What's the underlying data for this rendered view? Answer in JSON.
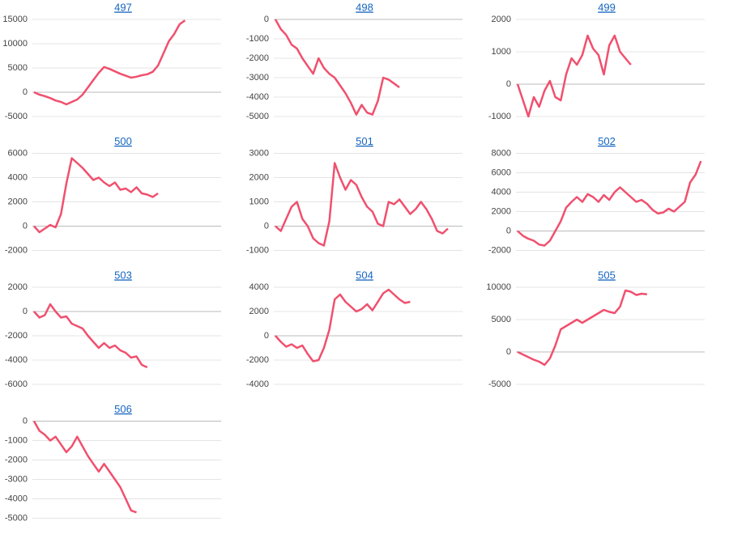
{
  "chart_data": [
    {
      "type": "line",
      "title": "497",
      "color": "#f0506e",
      "ylim": [
        -5000,
        15000
      ],
      "yticks": [
        -5000,
        0,
        5000,
        10000,
        15000
      ],
      "grid": true,
      "values": [
        0,
        -500,
        -800,
        -1200,
        -1700,
        -2000,
        -2500,
        -2000,
        -1500,
        -500,
        1000,
        2500,
        4000,
        5200,
        4800,
        4300,
        3800,
        3400,
        3000,
        3200,
        3500,
        3700,
        4200,
        5500,
        8000,
        10500,
        12000,
        14000,
        14800
      ]
    },
    {
      "type": "line",
      "title": "498",
      "color": "#f0506e",
      "ylim": [
        -5000,
        0
      ],
      "yticks": [
        -5000,
        -4000,
        -3000,
        -2000,
        -1000,
        0
      ],
      "grid": true,
      "values": [
        0,
        -500,
        -800,
        -1300,
        -1500,
        -2000,
        -2400,
        -2800,
        -2000,
        -2500,
        -2800,
        -3000,
        -3400,
        -3800,
        -4300,
        -4900,
        -4400,
        -4800,
        -4900,
        -4200,
        -3000,
        -3100,
        -3300,
        -3500
      ]
    },
    {
      "type": "line",
      "title": "499",
      "color": "#f0506e",
      "ylim": [
        -1000,
        2000
      ],
      "yticks": [
        -1000,
        0,
        1000,
        2000
      ],
      "grid": true,
      "values": [
        0,
        -500,
        -1000,
        -400,
        -700,
        -200,
        100,
        -400,
        -500,
        300,
        800,
        600,
        900,
        1500,
        1100,
        900,
        300,
        1200,
        1500,
        1000,
        800,
        600
      ]
    },
    {
      "type": "line",
      "title": "500",
      "color": "#f0506e",
      "ylim": [
        -2000,
        6000
      ],
      "yticks": [
        -2000,
        0,
        2000,
        4000,
        6000
      ],
      "grid": true,
      "values": [
        0,
        -500,
        -200,
        100,
        -100,
        1000,
        3500,
        5600,
        5200,
        4800,
        4300,
        3800,
        4000,
        3600,
        3300,
        3600,
        3000,
        3100,
        2800,
        3200,
        2700,
        2600,
        2400,
        2700
      ]
    },
    {
      "type": "line",
      "title": "501",
      "color": "#f0506e",
      "ylim": [
        -1000,
        3000
      ],
      "yticks": [
        -1000,
        0,
        1000,
        2000,
        3000
      ],
      "grid": true,
      "values": [
        0,
        -200,
        300,
        800,
        1000,
        300,
        0,
        -500,
        -700,
        -800,
        200,
        2600,
        2000,
        1500,
        1900,
        1700,
        1200,
        800,
        600,
        100,
        0,
        1000,
        900,
        1100,
        800,
        500,
        700,
        1000,
        700,
        300,
        -200,
        -300,
        -100
      ]
    },
    {
      "type": "line",
      "title": "502",
      "color": "#f0506e",
      "ylim": [
        -2000,
        8000
      ],
      "yticks": [
        -2000,
        0,
        2000,
        4000,
        6000,
        8000
      ],
      "grid": true,
      "values": [
        0,
        -500,
        -800,
        -1000,
        -1400,
        -1500,
        -1000,
        0,
        1000,
        2400,
        3000,
        3500,
        3000,
        3800,
        3500,
        3000,
        3700,
        3200,
        4000,
        4500,
        4000,
        3500,
        3000,
        3200,
        2800,
        2200,
        1800,
        1900,
        2300,
        2000,
        2500,
        3000,
        5000,
        5800,
        7200
      ]
    },
    {
      "type": "line",
      "title": "503",
      "color": "#f0506e",
      "ylim": [
        -6000,
        2000
      ],
      "yticks": [
        -6000,
        -4000,
        -2000,
        0,
        2000
      ],
      "grid": true,
      "values": [
        0,
        -500,
        -300,
        600,
        0,
        -500,
        -400,
        -1000,
        -1200,
        -1400,
        -2000,
        -2500,
        -3000,
        -2600,
        -3000,
        -2800,
        -3200,
        -3400,
        -3800,
        -3700,
        -4400,
        -4600
      ]
    },
    {
      "type": "line",
      "title": "504",
      "color": "#f0506e",
      "ylim": [
        -4000,
        4000
      ],
      "yticks": [
        -4000,
        -2000,
        0,
        2000,
        4000
      ],
      "grid": true,
      "values": [
        0,
        -500,
        -900,
        -700,
        -1000,
        -800,
        -1500,
        -2100,
        -2000,
        -1000,
        500,
        3000,
        3400,
        2800,
        2400,
        2000,
        2200,
        2600,
        2100,
        2800,
        3500,
        3800,
        3400,
        3000,
        2700,
        2800
      ]
    },
    {
      "type": "line",
      "title": "505",
      "color": "#f0506e",
      "ylim": [
        -5000,
        10000
      ],
      "yticks": [
        -5000,
        0,
        5000,
        10000
      ],
      "grid": true,
      "values": [
        0,
        -400,
        -800,
        -1200,
        -1500,
        -2000,
        -1000,
        1000,
        3500,
        4000,
        4500,
        5000,
        4500,
        5000,
        5500,
        6000,
        6500,
        6200,
        6000,
        7000,
        9500,
        9300,
        8800,
        9000,
        8900
      ]
    },
    {
      "type": "line",
      "title": "506",
      "color": "#f0506e",
      "ylim": [
        -5000,
        0
      ],
      "yticks": [
        -5000,
        -4000,
        -3000,
        -2000,
        -1000,
        0
      ],
      "grid": true,
      "values": [
        0,
        -500,
        -700,
        -1000,
        -800,
        -1200,
        -1600,
        -1300,
        -800,
        -1300,
        -1800,
        -2200,
        -2600,
        -2200,
        -2600,
        -3000,
        -3400,
        -4000,
        -4600,
        -4700
      ]
    }
  ]
}
